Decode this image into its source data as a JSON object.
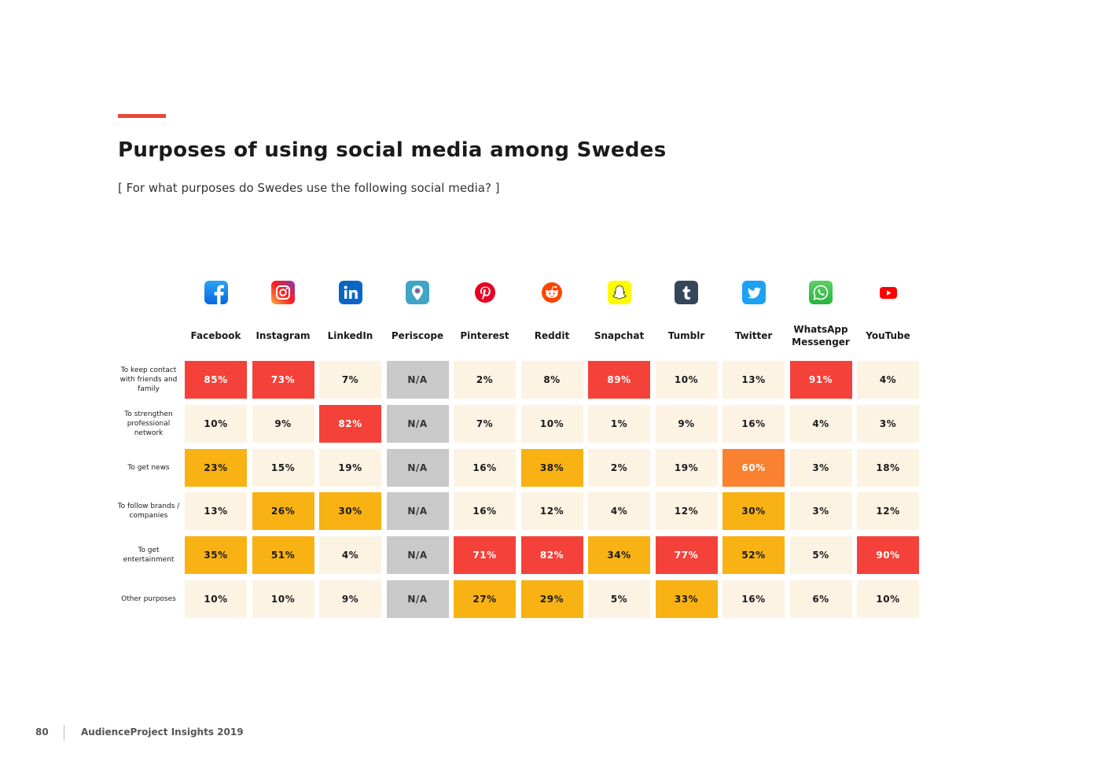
{
  "header": {
    "title": "Purposes of using social media among Swedes",
    "subtitle": "[ For what purposes do Swedes use the following social media? ]"
  },
  "footer": {
    "page_number": "80",
    "publication": "AudienceProject Insights 2019"
  },
  "chart_data": {
    "type": "heatmap",
    "title": "Purposes of using social media among Swedes",
    "subtitle": "[ For what purposes do Swedes use the following social media? ]",
    "columns": [
      {
        "name": "Facebook",
        "icon": "facebook-icon"
      },
      {
        "name": "Instagram",
        "icon": "instagram-icon"
      },
      {
        "name": "LinkedIn",
        "icon": "linkedin-icon"
      },
      {
        "name": "Periscope",
        "icon": "periscope-icon"
      },
      {
        "name": "Pinterest",
        "icon": "pinterest-icon"
      },
      {
        "name": "Reddit",
        "icon": "reddit-icon"
      },
      {
        "name": "Snapchat",
        "icon": "snapchat-icon"
      },
      {
        "name": "Tumblr",
        "icon": "tumblr-icon"
      },
      {
        "name": "Twitter",
        "icon": "twitter-icon"
      },
      {
        "name": "WhatsApp Messenger",
        "icon": "whatsapp-icon"
      },
      {
        "name": "YouTube",
        "icon": "youtube-icon"
      }
    ],
    "rows": [
      {
        "label": "To keep contact with friends and family",
        "values": [
          "85%",
          "73%",
          "7%",
          "N/A",
          "2%",
          "8%",
          "89%",
          "10%",
          "13%",
          "91%",
          "4%"
        ]
      },
      {
        "label": "To strengthen professional network",
        "values": [
          "10%",
          "9%",
          "82%",
          "N/A",
          "7%",
          "10%",
          "1%",
          "9%",
          "16%",
          "4%",
          "3%"
        ]
      },
      {
        "label": "To get news",
        "values": [
          "23%",
          "15%",
          "19%",
          "N/A",
          "16%",
          "38%",
          "2%",
          "19%",
          "60%",
          "3%",
          "18%"
        ]
      },
      {
        "label": "To follow brands / companies",
        "values": [
          "13%",
          "26%",
          "30%",
          "N/A",
          "16%",
          "12%",
          "4%",
          "12%",
          "30%",
          "3%",
          "12%"
        ]
      },
      {
        "label": "To get entertainment",
        "values": [
          "35%",
          "51%",
          "4%",
          "N/A",
          "71%",
          "82%",
          "34%",
          "77%",
          "52%",
          "5%",
          "90%"
        ]
      },
      {
        "label": "Other purposes",
        "values": [
          "10%",
          "10%",
          "9%",
          "N/A",
          "27%",
          "29%",
          "5%",
          "33%",
          "16%",
          "6%",
          "10%"
        ]
      }
    ],
    "color_scale": {
      "low": "#fdf3e3",
      "mid": "#f9b214",
      "orange": "#f9812f",
      "high": "#f4423a",
      "na": "#c9c9c9"
    }
  }
}
